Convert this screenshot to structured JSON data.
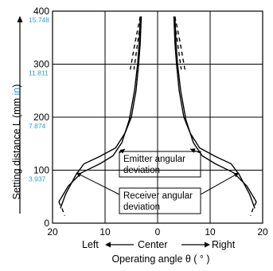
{
  "chart_data": {
    "type": "line",
    "xlim": [
      -20,
      20
    ],
    "ylim": [
      0,
      400
    ],
    "x_ticks": [
      "20",
      "10",
      "0",
      "10",
      "20"
    ],
    "y_ticks_mm": [
      "0",
      "100",
      "200",
      "300",
      "400"
    ],
    "y_ticks_in": [
      "3.937",
      "7.874",
      "11.811",
      "15.748"
    ],
    "ylabel_prefix": "Setting distance L (mm ",
    "ylabel_unit": "in",
    "ylabel_suffix": ")",
    "xlabel_left": "Left",
    "xlabel_center": "Center",
    "xlabel_right": "Right",
    "xlabel": "Operating angle θ ( ° )",
    "grid": true,
    "colors": {
      "accent": "#2a9fd6",
      "line": "#000000"
    },
    "annotations": [
      {
        "lines": [
          "Emitter angular",
          "deviation"
        ]
      },
      {
        "lines": [
          "Receiver angular",
          "deviation"
        ]
      }
    ],
    "series": [
      {
        "style": "solid",
        "points": [
          [
            18.5,
            28
          ],
          [
            17.5,
            55
          ],
          [
            15.5,
            92
          ],
          [
            14,
            112
          ],
          [
            11,
            126
          ],
          [
            8,
            142
          ],
          [
            6.2,
            170
          ],
          [
            5,
            200
          ],
          [
            4.1,
            250
          ],
          [
            3.6,
            300
          ],
          [
            3.3,
            340
          ],
          [
            3.1,
            390
          ]
        ]
      },
      {
        "style": "solid",
        "points": [
          [
            18.8,
            40
          ],
          [
            17,
            70
          ],
          [
            14.5,
            95
          ],
          [
            11,
            112
          ],
          [
            8.5,
            127
          ],
          [
            6.8,
            152
          ],
          [
            5.4,
            195
          ],
          [
            4.4,
            250
          ],
          [
            3.8,
            300
          ],
          [
            3.5,
            340
          ],
          [
            3.3,
            390
          ]
        ]
      },
      {
        "style": "dashed",
        "points": [
          [
            18.8,
            40
          ],
          [
            18.2,
            28
          ],
          [
            17.7,
            14
          ]
        ]
      },
      {
        "style": "dashed",
        "points": [
          [
            3.1,
            390
          ],
          [
            3.8,
            340
          ],
          [
            4.5,
            290
          ]
        ]
      },
      {
        "style": "dashed",
        "points": [
          [
            3.3,
            390
          ],
          [
            4.3,
            340
          ],
          [
            5.2,
            290
          ]
        ]
      }
    ]
  }
}
